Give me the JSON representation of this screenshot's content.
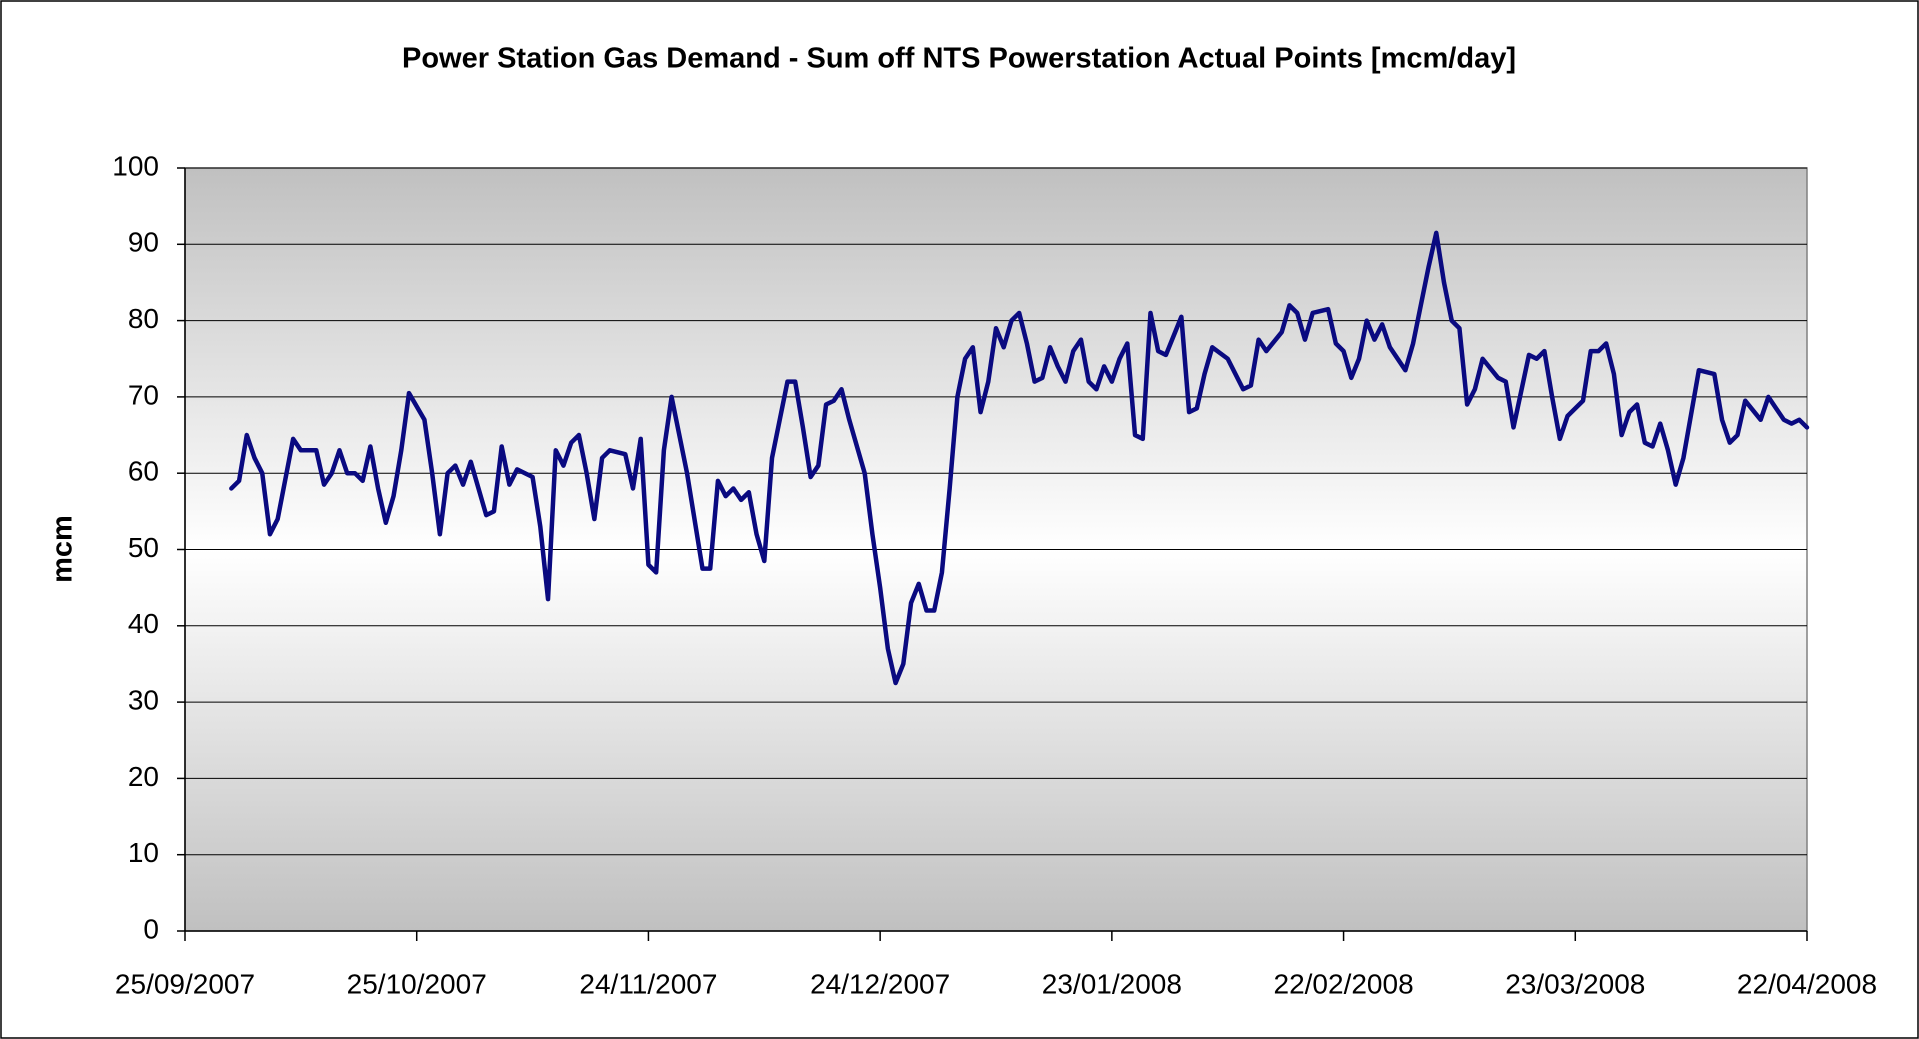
{
  "chart_data": {
    "type": "line",
    "title": "Power Station Gas Demand - Sum off NTS Powerstation Actual Points [mcm/day]",
    "y_label": "mcm",
    "color": "#0a0a80",
    "grid": true,
    "xlim": [
      "25/09/2007",
      "22/04/2008"
    ],
    "xticks": [
      "25/09/2007",
      "25/10/2007",
      "24/11/2007",
      "24/12/2007",
      "23/01/2008",
      "22/02/2008",
      "23/03/2008",
      "22/04/2008"
    ],
    "ylim": [
      0,
      100
    ],
    "yticks": [
      0,
      10,
      20,
      30,
      40,
      50,
      60,
      70,
      80,
      90,
      100
    ],
    "x": [
      "01/10/2007",
      "02/10/2007",
      "03/10/2007",
      "04/10/2007",
      "05/10/2007",
      "06/10/2007",
      "07/10/2007",
      "09/10/2007",
      "10/10/2007",
      "12/10/2007",
      "13/10/2007",
      "14/10/2007",
      "15/10/2007",
      "16/10/2007",
      "17/10/2007",
      "18/10/2007",
      "19/10/2007",
      "20/10/2007",
      "21/10/2007",
      "22/10/2007",
      "23/10/2007",
      "24/10/2007",
      "26/10/2007",
      "27/10/2007",
      "28/10/2007",
      "29/10/2007",
      "30/10/2007",
      "31/10/2007",
      "01/11/2007",
      "03/11/2007",
      "04/11/2007",
      "05/11/2007",
      "06/11/2007",
      "07/11/2007",
      "09/11/2007",
      "10/11/2007",
      "11/11/2007",
      "12/11/2007",
      "13/11/2007",
      "14/11/2007",
      "15/11/2007",
      "16/11/2007",
      "17/11/2007",
      "18/11/2007",
      "19/11/2007",
      "21/11/2007",
      "22/11/2007",
      "23/11/2007",
      "24/11/2007",
      "25/11/2007",
      "26/11/2007",
      "27/11/2007",
      "28/11/2007",
      "29/11/2007",
      "01/12/2007",
      "02/12/2007",
      "03/12/2007",
      "04/12/2007",
      "05/12/2007",
      "06/12/2007",
      "07/12/2007",
      "08/12/2007",
      "09/12/2007",
      "10/12/2007",
      "11/12/2007",
      "12/12/2007",
      "13/12/2007",
      "14/12/2007",
      "15/12/2007",
      "16/12/2007",
      "17/12/2007",
      "18/12/2007",
      "19/12/2007",
      "20/12/2007",
      "22/12/2007",
      "23/12/2007",
      "24/12/2007",
      "25/12/2007",
      "26/12/2007",
      "27/12/2007",
      "28/12/2007",
      "29/12/2007",
      "30/12/2007",
      "31/12/2007",
      "01/01/2008",
      "02/01/2008",
      "03/01/2008",
      "04/01/2008",
      "05/01/2008",
      "06/01/2008",
      "07/01/2008",
      "08/01/2008",
      "09/01/2008",
      "10/01/2008",
      "11/01/2008",
      "12/01/2008",
      "13/01/2008",
      "14/01/2008",
      "15/01/2008",
      "16/01/2008",
      "17/01/2008",
      "18/01/2008",
      "19/01/2008",
      "20/01/2008",
      "21/01/2008",
      "22/01/2008",
      "23/01/2008",
      "24/01/2008",
      "25/01/2008",
      "26/01/2008",
      "27/01/2008",
      "28/01/2008",
      "29/01/2008",
      "30/01/2008",
      "01/02/2008",
      "02/02/2008",
      "03/02/2008",
      "04/02/2008",
      "05/02/2008",
      "07/02/2008",
      "09/02/2008",
      "10/02/2008",
      "11/02/2008",
      "12/02/2008",
      "14/02/2008",
      "15/02/2008",
      "16/02/2008",
      "17/02/2008",
      "18/02/2008",
      "20/02/2008",
      "21/02/2008",
      "22/02/2008",
      "23/02/2008",
      "24/02/2008",
      "25/02/2008",
      "26/02/2008",
      "27/02/2008",
      "28/02/2008",
      "01/03/2008",
      "02/03/2008",
      "04/03/2008",
      "05/03/2008",
      "06/03/2008",
      "07/03/2008",
      "08/03/2008",
      "09/03/2008",
      "10/03/2008",
      "11/03/2008",
      "13/03/2008",
      "14/03/2008",
      "15/03/2008",
      "17/03/2008",
      "18/03/2008",
      "19/03/2008",
      "20/03/2008",
      "21/03/2008",
      "22/03/2008",
      "24/03/2008",
      "25/03/2008",
      "26/03/2008",
      "27/03/2008",
      "28/03/2008",
      "29/03/2008",
      "30/03/2008",
      "31/03/2008",
      "01/04/2008",
      "02/04/2008",
      "03/04/2008",
      "04/04/2008",
      "05/04/2008",
      "06/04/2008",
      "08/04/2008",
      "10/04/2008",
      "11/04/2008",
      "12/04/2008",
      "13/04/2008",
      "14/04/2008",
      "16/04/2008",
      "17/04/2008",
      "18/04/2008",
      "19/04/2008",
      "20/04/2008",
      "21/04/2008",
      "22/04/2008"
    ],
    "values": [
      58,
      59,
      65,
      62,
      60,
      52,
      54,
      64.5,
      63,
      63,
      58.5,
      60,
      63,
      60,
      60,
      59,
      63.5,
      58,
      53.5,
      57,
      63,
      70.5,
      67,
      60,
      52,
      60,
      61,
      58.5,
      61.5,
      54.5,
      55,
      63.5,
      58.5,
      60.5,
      59.5,
      53,
      43.5,
      63,
      61,
      64,
      65,
      60,
      54,
      62,
      63,
      62.5,
      58,
      64.5,
      48,
      47,
      63,
      70,
      65,
      60,
      47.5,
      47.5,
      59,
      57,
      58,
      56.5,
      57.5,
      52,
      48.5,
      62,
      67,
      72,
      72,
      66,
      59.5,
      61,
      69,
      69.5,
      71,
      67,
      60,
      52,
      45,
      37,
      32.5,
      35,
      43,
      45.5,
      42,
      42,
      47,
      58,
      70,
      75,
      76.5,
      68,
      72,
      79,
      76.5,
      80,
      81,
      77,
      72,
      72.5,
      76.5,
      74,
      72,
      76,
      77.5,
      72,
      71,
      74,
      72,
      75,
      77,
      65,
      64.5,
      81,
      76,
      75.5,
      80.5,
      68,
      68.5,
      73,
      76.5,
      75,
      71,
      71.5,
      77.5,
      76,
      78.5,
      82,
      81,
      77.5,
      81,
      81.5,
      77,
      76,
      72.5,
      75,
      80,
      77.5,
      79.5,
      76.5,
      73.5,
      77,
      87,
      91.5,
      85,
      80,
      79,
      69,
      71,
      75,
      72.5,
      72,
      66,
      75.5,
      75,
      76,
      70,
      64.5,
      67.5,
      69.5,
      76,
      76,
      77,
      73,
      65,
      68,
      69,
      64,
      63.5,
      66.5,
      63,
      58.5,
      62,
      73.5,
      73,
      67,
      64,
      65,
      69.5,
      67,
      70,
      68.5,
      67,
      66.5,
      67,
      66
    ]
  }
}
